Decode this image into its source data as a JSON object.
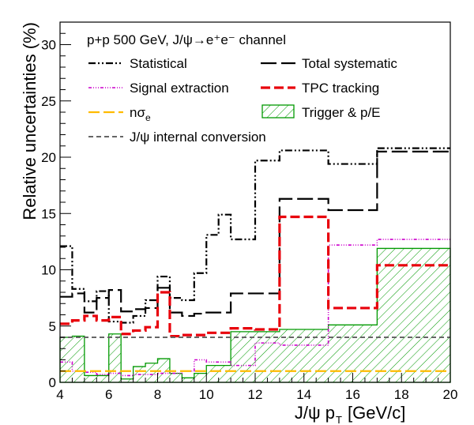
{
  "chart_data": {
    "type": "line",
    "step": true,
    "title": "p+p 500 GeV, J/ψ→e⁺e⁻ channel",
    "xlabel": "J/ψ p",
    "xlabel_sub": "T",
    "xlabel_unit": "[GeV/c]",
    "ylabel": "Relative uncertainties (%)",
    "xlim": [
      4,
      20
    ],
    "ylim": [
      0,
      32
    ],
    "xticks": [
      4,
      6,
      8,
      10,
      12,
      14,
      16,
      18,
      20
    ],
    "yticks": [
      0,
      5,
      10,
      15,
      20,
      25,
      30
    ],
    "legend_position": "top-left",
    "grid": false,
    "series": [
      {
        "name": "Statistical",
        "color": "#000000",
        "dash": "9,3,2,3,2,3",
        "width": 2.2,
        "edges": [
          4.0,
          4.5,
          5.0,
          5.5,
          6.0,
          6.5,
          7.0,
          7.5,
          8.0,
          8.5,
          9.0,
          9.5,
          10.0,
          10.5,
          11.0,
          12.0,
          13.0,
          15.0,
          17.0,
          20.0
        ],
        "values": [
          12.1,
          8.3,
          7.2,
          8.1,
          5.4,
          5.3,
          5.9,
          7.3,
          9.4,
          7.5,
          7.3,
          9.7,
          13.1,
          14.9,
          12.7,
          19.7,
          20.6,
          19.4,
          20.8
        ]
      },
      {
        "name": "Total systematic",
        "color": "#000000",
        "dash": "20,6",
        "width": 2.2,
        "edges": [
          4.0,
          4.5,
          5.0,
          5.5,
          6.0,
          6.5,
          7.0,
          7.5,
          8.0,
          8.5,
          9.0,
          9.5,
          10.0,
          11.0,
          13.0,
          15.0,
          17.0,
          20.0
        ],
        "values": [
          7.6,
          7.9,
          6.2,
          7.5,
          8.2,
          6.3,
          6.5,
          6.6,
          8.4,
          6.2,
          5.9,
          6.1,
          6.2,
          7.9,
          16.3,
          15.3,
          20.5
        ]
      },
      {
        "name": "Signal extraction",
        "color": "#cc00cc",
        "dash": "4,2,1,2,1,2,1,2",
        "width": 1.6,
        "edges": [
          4.0,
          4.5,
          5.0,
          5.5,
          6.0,
          6.5,
          7.0,
          8.0,
          9.0,
          9.5,
          10.0,
          11.0,
          12.0,
          13.0,
          15.0,
          17.0,
          20.0
        ],
        "values": [
          1.8,
          1.0,
          0.9,
          0.7,
          0.8,
          0.6,
          0.7,
          0.8,
          1.0,
          2.0,
          1.8,
          1.5,
          3.5,
          3.3,
          12.2,
          12.7
        ]
      },
      {
        "name": "TPC tracking",
        "color": "#e8000b",
        "dash": "12,5",
        "width": 3.2,
        "edges": [
          4.0,
          4.5,
          5.0,
          5.5,
          6.0,
          6.5,
          7.0,
          7.5,
          8.0,
          8.5,
          9.0,
          10.0,
          11.0,
          12.0,
          13.0,
          15.0,
          17.0,
          20.0
        ],
        "values": [
          5.2,
          5.5,
          5.9,
          5.5,
          5.8,
          4.3,
          4.6,
          4.9,
          8.0,
          4.1,
          4.2,
          4.4,
          4.8,
          4.7,
          14.7,
          6.6,
          10.4
        ]
      },
      {
        "name": "nσ",
        "name_sub": "e",
        "color": "#ffbb00",
        "dash": "14,5",
        "width": 2.2,
        "edges": [
          4.0,
          20.0
        ],
        "values": [
          1.0
        ]
      },
      {
        "name": "Trigger & p/E",
        "color": "#009900",
        "fill": "hatch",
        "width": 1.3,
        "edges": [
          4.0,
          4.5,
          5.0,
          5.5,
          6.0,
          6.5,
          7.0,
          7.5,
          8.0,
          8.5,
          9.0,
          9.5,
          10.0,
          11.0,
          13.0,
          15.0,
          17.0,
          20.0
        ],
        "values": [
          4.0,
          4.1,
          0.6,
          0.6,
          4.3,
          0.3,
          1.4,
          1.7,
          2.1,
          0.8,
          0.4,
          0.8,
          1.5,
          4.5,
          4.7,
          5.1,
          11.9
        ]
      },
      {
        "name": "J/ψ internal conversion",
        "color": "#666666",
        "dash": "6,4",
        "width": 2.0,
        "edges": [
          4.0,
          20.0
        ],
        "values": [
          4.0
        ]
      }
    ]
  }
}
